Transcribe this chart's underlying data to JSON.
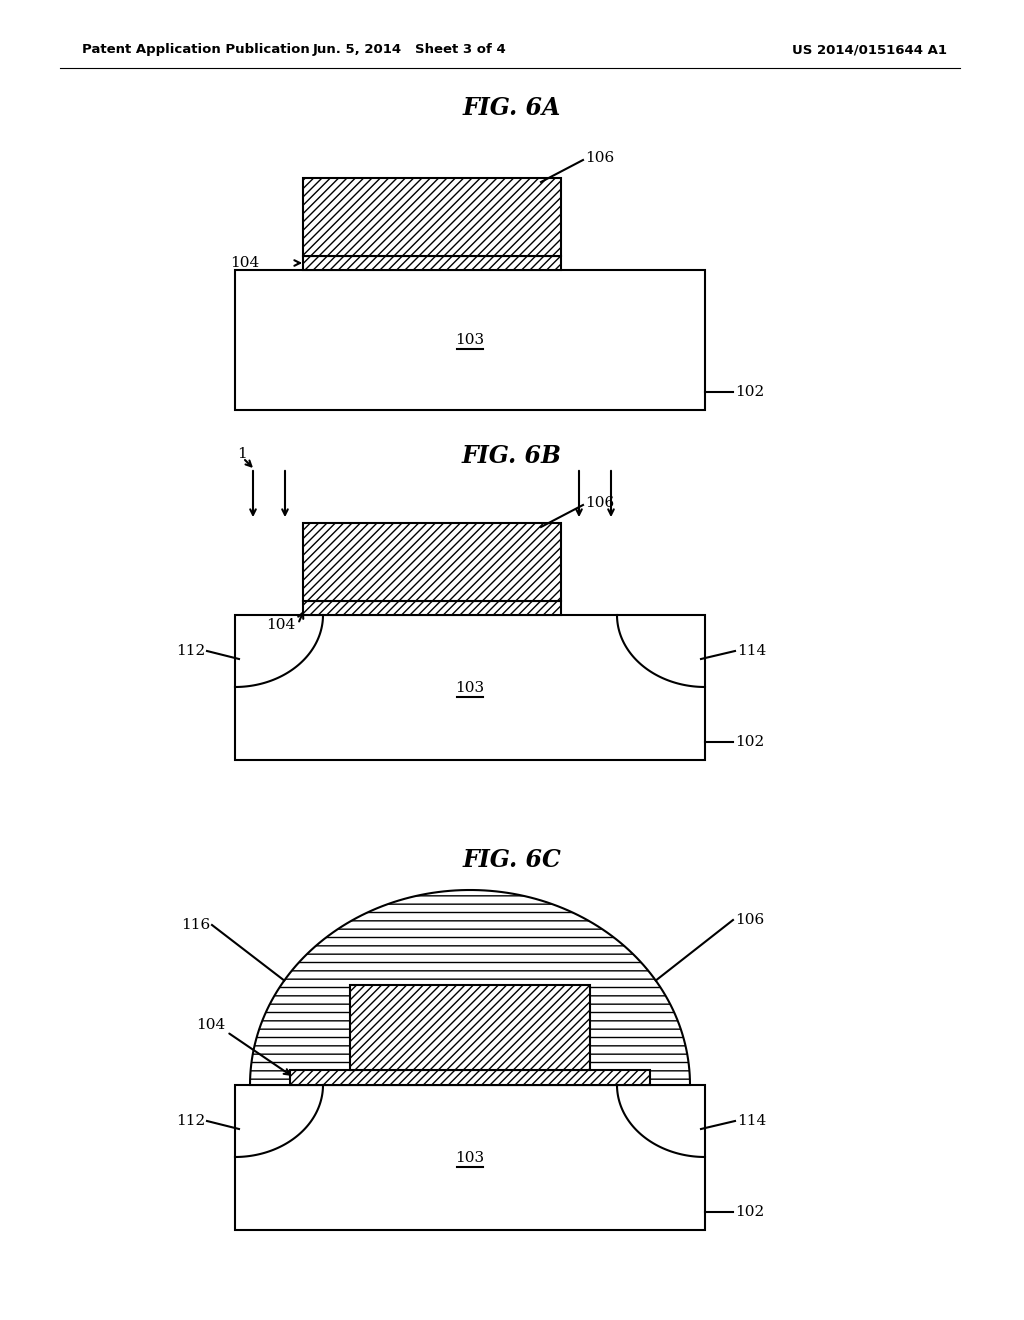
{
  "bg_color": "#ffffff",
  "header_left": "Patent Application Publication",
  "header_center": "Jun. 5, 2014   Sheet 3 of 4",
  "header_right": "US 2014/0151644 A1",
  "fig6a_title": "FIG. 6A",
  "fig6b_title": "FIG. 6B",
  "fig6c_title": "FIG. 6C",
  "line_color": "#000000",
  "line_width": 1.5
}
